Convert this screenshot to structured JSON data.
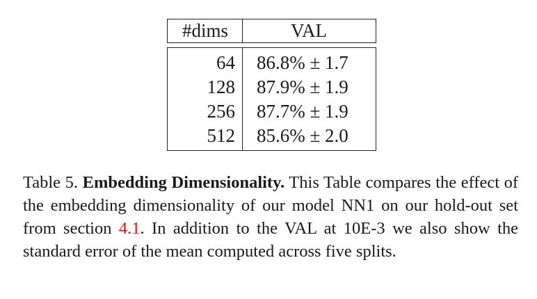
{
  "table": {
    "headers": [
      "#dims",
      "VAL"
    ],
    "rows": [
      {
        "dims": "64",
        "val": "86.8% ± 1.7"
      },
      {
        "dims": "128",
        "val": "87.9% ± 1.9"
      },
      {
        "dims": "256",
        "val": "87.7% ± 1.9"
      },
      {
        "dims": "512",
        "val": "85.6% ± 2.0"
      }
    ]
  },
  "caption": {
    "label": "Table 5.",
    "title": "Embedding Dimensionality.",
    "text_part1": "This Table compares the effect of the embedding dimensionality of our model NN1 on our hold-out set from section",
    "section_ref": "4.1",
    "text_part2": ". In addition to the VAL at",
    "threshold": "10E-3",
    "text_part3": "we also show the standard error of the mean computed across five splits."
  },
  "colors": {
    "text": "#1a1a1a",
    "reference_link": "#d21414"
  }
}
